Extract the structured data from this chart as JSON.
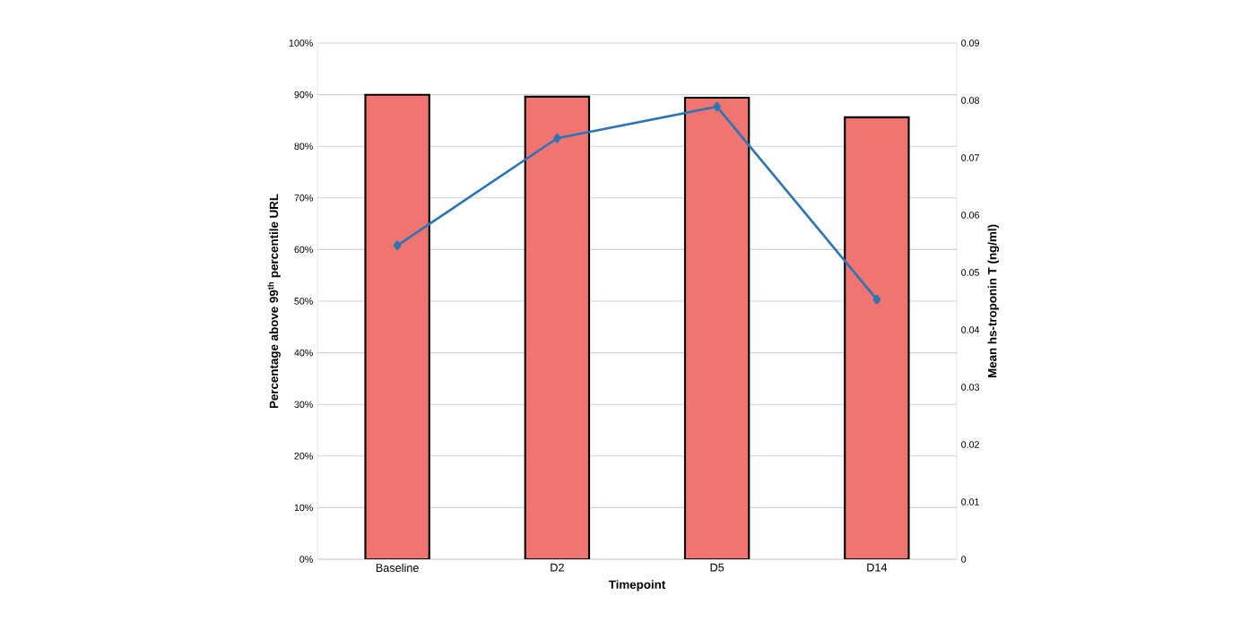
{
  "chart_data": {
    "type": "bar",
    "xlabel": "Timepoint",
    "ylabel": "Percentage above 99$^{th}$ percentile URL",
    "y2label": "Mean hs-troponin T (ng/ml)",
    "categories": [
      "Baseline",
      "D2",
      "D5",
      "D14"
    ],
    "series": [
      {
        "color": "#f07470",
        "values": [
          90,
          89.6,
          89.4,
          85.6
        ]
      },
      {
        "type": "line",
        "axis": "y2",
        "color": "#2e75b6",
        "marker": "diamond",
        "values": [
          0.0547,
          0.0734,
          0.0789,
          0.0453
        ]
      }
    ],
    "ylim": [
      0,
      100
    ],
    "yticks": [
      {
        "value": 0,
        "label": "0%"
      },
      {
        "value": 10,
        "label": "10%"
      },
      {
        "value": 20,
        "label": "20%"
      },
      {
        "value": 30,
        "label": "30%"
      },
      {
        "value": 40,
        "label": "40%"
      },
      {
        "value": 50,
        "label": "50%"
      },
      {
        "value": 60,
        "label": "60%"
      },
      {
        "value": 70,
        "label": "70%"
      },
      {
        "value": 80,
        "label": "80%"
      },
      {
        "value": 90,
        "label": "90%"
      },
      {
        "value": 100,
        "label": "100%"
      }
    ],
    "y2lim": [
      0,
      0.09
    ],
    "y2ticks": [
      0,
      0.01,
      0.02,
      0.03,
      0.04,
      0.05,
      0.06,
      0.07,
      0.08,
      0.09
    ],
    "grid": "y"
  }
}
